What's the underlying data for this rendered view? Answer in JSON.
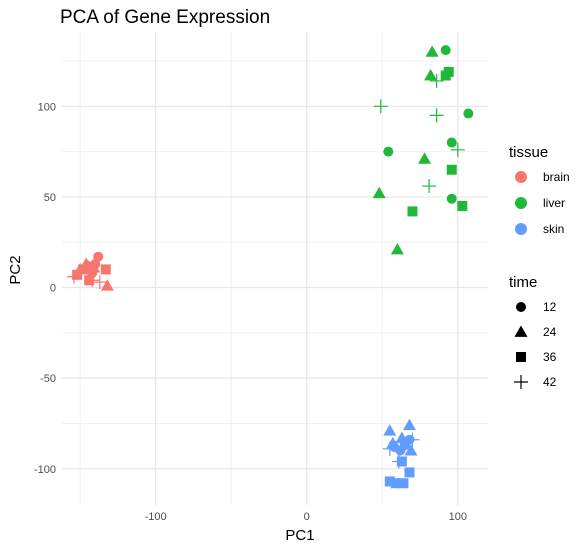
{
  "chart_data": {
    "type": "scatter",
    "title": "PCA of Gene Expression",
    "xlabel": "PC1",
    "ylabel": "PC2",
    "xlim": [
      -162,
      120
    ],
    "ylim": [
      -120,
      141
    ],
    "x_ticks": [
      -100,
      0,
      100
    ],
    "x_tick_labels": [
      "-100",
      "0",
      "100"
    ],
    "y_ticks": [
      -100,
      -50,
      0,
      50,
      100
    ],
    "y_tick_labels": [
      "-100",
      "-50",
      "0",
      "50",
      "100"
    ],
    "grid": true,
    "legend_position": "right",
    "color_legend": {
      "title": "tissue",
      "entries": [
        {
          "label": "brain",
          "color": "#F8766D"
        },
        {
          "label": "liver",
          "color": "#1FB839"
        },
        {
          "label": "skin",
          "color": "#619CFF"
        }
      ]
    },
    "shape_legend": {
      "title": "time",
      "entries": [
        {
          "label": "12",
          "shape": "circle"
        },
        {
          "label": "24",
          "shape": "triangle"
        },
        {
          "label": "36",
          "shape": "square"
        },
        {
          "label": "42",
          "shape": "plus"
        }
      ]
    },
    "points": [
      {
        "tissue": "brain",
        "time": "12",
        "x": -147,
        "y": 10
      },
      {
        "tissue": "brain",
        "time": "12",
        "x": -145,
        "y": 12
      },
      {
        "tissue": "brain",
        "time": "12",
        "x": -142,
        "y": 8
      },
      {
        "tissue": "brain",
        "time": "12",
        "x": -138,
        "y": 17
      },
      {
        "tissue": "brain",
        "time": "12",
        "x": -140,
        "y": 13
      },
      {
        "tissue": "brain",
        "time": "24",
        "x": -150,
        "y": 10
      },
      {
        "tissue": "brain",
        "time": "24",
        "x": -146,
        "y": 13
      },
      {
        "tissue": "brain",
        "time": "24",
        "x": -132,
        "y": 1
      },
      {
        "tissue": "brain",
        "time": "24",
        "x": -141,
        "y": 11
      },
      {
        "tissue": "brain",
        "time": "36",
        "x": -152,
        "y": 7
      },
      {
        "tissue": "brain",
        "time": "36",
        "x": -144,
        "y": 4
      },
      {
        "tissue": "brain",
        "time": "36",
        "x": -133,
        "y": 10
      },
      {
        "tissue": "brain",
        "time": "36",
        "x": -148,
        "y": 10
      },
      {
        "tissue": "brain",
        "time": "42",
        "x": -154,
        "y": 6
      },
      {
        "tissue": "brain",
        "time": "42",
        "x": -142,
        "y": 4
      },
      {
        "tissue": "brain",
        "time": "42",
        "x": -137,
        "y": 3
      },
      {
        "tissue": "liver",
        "time": "12",
        "x": 92,
        "y": 131
      },
      {
        "tissue": "liver",
        "time": "12",
        "x": 54,
        "y": 75
      },
      {
        "tissue": "liver",
        "time": "12",
        "x": 96,
        "y": 80
      },
      {
        "tissue": "liver",
        "time": "12",
        "x": 107,
        "y": 96
      },
      {
        "tissue": "liver",
        "time": "12",
        "x": 96,
        "y": 49
      },
      {
        "tissue": "liver",
        "time": "24",
        "x": 83,
        "y": 130
      },
      {
        "tissue": "liver",
        "time": "24",
        "x": 82,
        "y": 117
      },
      {
        "tissue": "liver",
        "time": "24",
        "x": 78,
        "y": 71
      },
      {
        "tissue": "liver",
        "time": "24",
        "x": 48,
        "y": 52
      },
      {
        "tissue": "liver",
        "time": "24",
        "x": 60,
        "y": 21
      },
      {
        "tissue": "liver",
        "time": "36",
        "x": 94,
        "y": 119
      },
      {
        "tissue": "liver",
        "time": "36",
        "x": 92,
        "y": 117
      },
      {
        "tissue": "liver",
        "time": "36",
        "x": 96,
        "y": 65
      },
      {
        "tissue": "liver",
        "time": "36",
        "x": 70,
        "y": 42
      },
      {
        "tissue": "liver",
        "time": "36",
        "x": 103,
        "y": 45
      },
      {
        "tissue": "liver",
        "time": "42",
        "x": 49,
        "y": 100
      },
      {
        "tissue": "liver",
        "time": "42",
        "x": 86,
        "y": 95
      },
      {
        "tissue": "liver",
        "time": "42",
        "x": 100,
        "y": 76
      },
      {
        "tissue": "liver",
        "time": "42",
        "x": 81,
        "y": 56
      },
      {
        "tissue": "liver",
        "time": "42",
        "x": 86,
        "y": 114
      },
      {
        "tissue": "skin",
        "time": "12",
        "x": 65,
        "y": -87
      },
      {
        "tissue": "skin",
        "time": "12",
        "x": 68,
        "y": -84
      },
      {
        "tissue": "skin",
        "time": "12",
        "x": 62,
        "y": -90
      },
      {
        "tissue": "skin",
        "time": "12",
        "x": 58,
        "y": -88
      },
      {
        "tissue": "skin",
        "time": "24",
        "x": 55,
        "y": -79
      },
      {
        "tissue": "skin",
        "time": "24",
        "x": 68,
        "y": -76
      },
      {
        "tissue": "skin",
        "time": "24",
        "x": 57,
        "y": -86
      },
      {
        "tissue": "skin",
        "time": "24",
        "x": 63,
        "y": -83
      },
      {
        "tissue": "skin",
        "time": "24",
        "x": 69,
        "y": -90
      },
      {
        "tissue": "skin",
        "time": "36",
        "x": 55,
        "y": -107
      },
      {
        "tissue": "skin",
        "time": "36",
        "x": 63,
        "y": -96
      },
      {
        "tissue": "skin",
        "time": "36",
        "x": 68,
        "y": -102
      },
      {
        "tissue": "skin",
        "time": "36",
        "x": 59,
        "y": -108
      },
      {
        "tissue": "skin",
        "time": "36",
        "x": 64,
        "y": -108
      },
      {
        "tissue": "skin",
        "time": "42",
        "x": 55,
        "y": -89
      },
      {
        "tissue": "skin",
        "time": "42",
        "x": 70,
        "y": -84
      },
      {
        "tissue": "skin",
        "time": "42",
        "x": 61,
        "y": -96
      },
      {
        "tissue": "skin",
        "time": "42",
        "x": 62,
        "y": -85
      }
    ]
  }
}
